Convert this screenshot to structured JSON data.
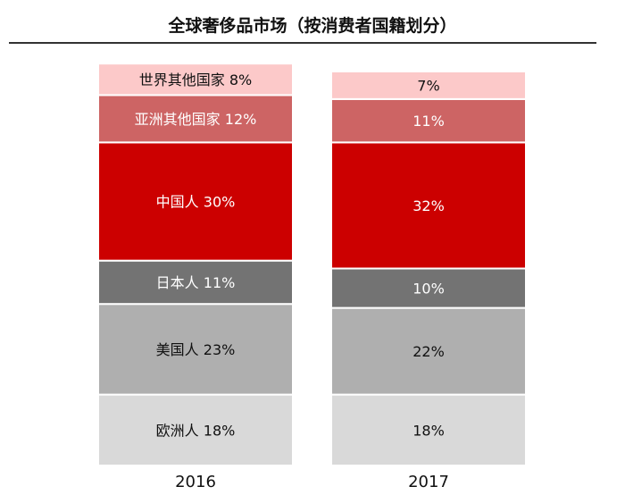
{
  "chart_data": {
    "type": "bar",
    "stacked": true,
    "title": "全球奢侈品市场（按消费者国籍划分）",
    "categories": [
      "2016",
      "2017"
    ],
    "series": [
      {
        "name": "欧洲人",
        "values": [
          18,
          18
        ],
        "color": "#d9d9d9"
      },
      {
        "name": "美国人",
        "values": [
          23,
          22
        ],
        "color": "#afafaf"
      },
      {
        "name": "日本人",
        "values": [
          11,
          10
        ],
        "color": "#737373"
      },
      {
        "name": "中国人",
        "values": [
          30,
          32
        ],
        "color": "#cc0000"
      },
      {
        "name": "亚洲其他国家",
        "values": [
          12,
          11
        ],
        "color": "#cd6464"
      },
      {
        "name": "世界其他国家",
        "values": [
          8,
          7
        ],
        "color": "#fcc9c9"
      }
    ],
    "labels": [
      [
        "欧洲人 18%",
        "美国人 23%",
        "日本人 11%",
        "中国人 30%",
        "亚洲其他国家 12%",
        "世界其他国家 8%"
      ],
      [
        "18%",
        "22%",
        "10%",
        "32%",
        "11%",
        "7%"
      ]
    ],
    "ylim": [
      0,
      100
    ],
    "grid": false,
    "legend": "none"
  }
}
